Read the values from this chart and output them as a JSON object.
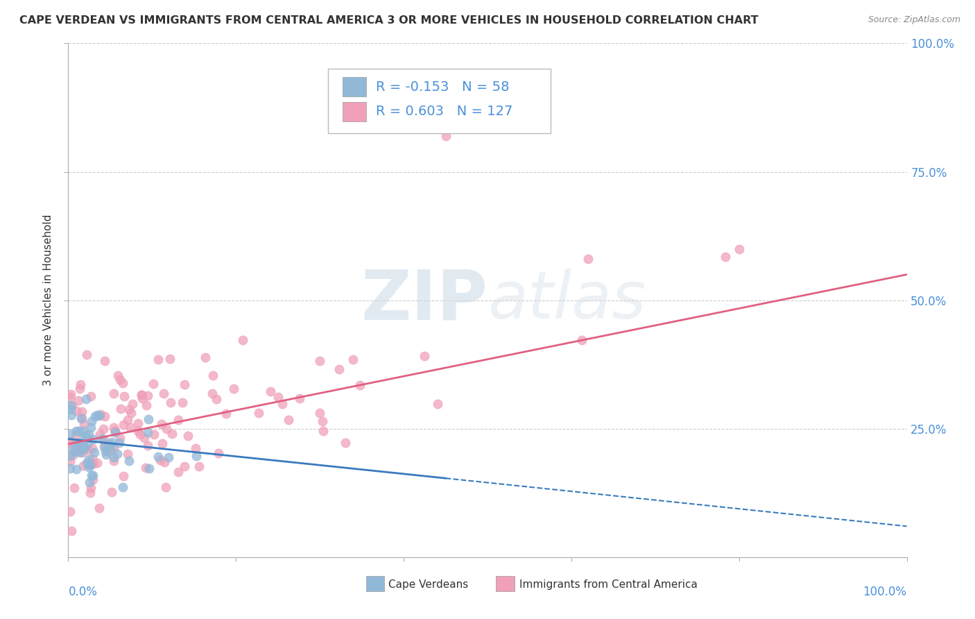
{
  "title": "CAPE VERDEAN VS IMMIGRANTS FROM CENTRAL AMERICA 3 OR MORE VEHICLES IN HOUSEHOLD CORRELATION CHART",
  "source": "Source: ZipAtlas.com",
  "ylabel": "3 or more Vehicles in Household",
  "r_blue": -0.153,
  "n_blue": 58,
  "r_pink": 0.603,
  "n_pink": 127,
  "blue_color": "#92b8d8",
  "pink_color": "#f0a0b8",
  "blue_line_color": "#3a7abf",
  "pink_line_color": "#e06080",
  "watermark_color": "#d0dce8",
  "background_color": "#ffffff",
  "grid_color": "#cccccc",
  "tick_color": "#4a90d9",
  "title_color": "#333333",
  "source_color": "#888888"
}
